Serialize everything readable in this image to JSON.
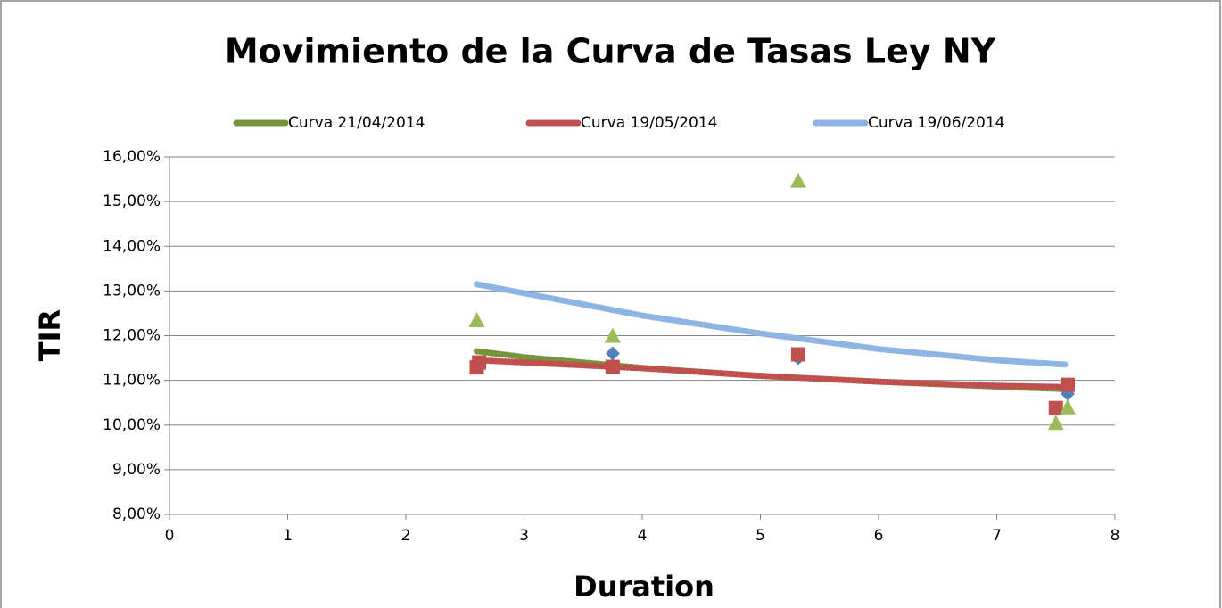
{
  "chart_data": {
    "type": "scatter",
    "title": "Movimiento de la Curva de Tasas Ley NY",
    "x_label": "Duration",
    "y_label": "TIR",
    "xlim": [
      0,
      8
    ],
    "xticks": [
      0,
      1,
      2,
      3,
      4,
      5,
      6,
      7,
      8
    ],
    "ylim": [
      8,
      16
    ],
    "yticks": [
      {
        "value": 8,
        "label": "8,00%"
      },
      {
        "value": 9,
        "label": "9,00%"
      },
      {
        "value": 10,
        "label": "10,00%"
      },
      {
        "value": 11,
        "label": "11,00%"
      },
      {
        "value": 12,
        "label": "12,00%"
      },
      {
        "value": 13,
        "label": "13,00%"
      },
      {
        "value": 14,
        "label": "14,00%"
      },
      {
        "value": 15,
        "label": "15,00%"
      },
      {
        "value": 16,
        "label": "16,00%"
      }
    ],
    "grid": true,
    "legend": "top",
    "series": [
      {
        "color": "#4f81bd",
        "marker": "diamond",
        "x": [
          2.6,
          3.75,
          5.32,
          7.6
        ],
        "values": [
          11.35,
          11.6,
          11.5,
          10.7
        ]
      },
      {
        "color": "#c0504d",
        "marker": "square",
        "x": [
          2.6,
          2.62,
          3.75,
          5.32,
          7.5,
          7.6
        ],
        "values": [
          11.29,
          11.4,
          11.3,
          11.58,
          10.38,
          10.9
        ]
      },
      {
        "color": "#9bbb59",
        "marker": "triangle",
        "x": [
          2.6,
          3.75,
          5.32,
          7.5,
          7.6
        ],
        "values": [
          12.35,
          12.0,
          15.47,
          10.05,
          10.4
        ]
      }
    ],
    "trendlines": [
      {
        "name": "Curva 21/04/2014",
        "color": "#77933c",
        "x": [
          2.6,
          3,
          4,
          5,
          6,
          7,
          7.6
        ],
        "values": [
          11.65,
          11.52,
          11.28,
          11.1,
          10.97,
          10.86,
          10.8
        ]
      },
      {
        "name": "Curva 19/05/2014",
        "color": "#c0504d",
        "x": [
          2.6,
          3,
          4,
          5,
          6,
          7,
          7.6
        ],
        "values": [
          11.45,
          11.4,
          11.27,
          11.1,
          10.97,
          10.88,
          10.85
        ]
      },
      {
        "name": "Curva 19/06/2014",
        "color": "#8eb4e3",
        "x": [
          2.6,
          3,
          4,
          5,
          6,
          7,
          7.6
        ],
        "values": [
          13.15,
          12.95,
          12.45,
          12.05,
          11.7,
          11.45,
          11.35
        ]
      }
    ]
  }
}
